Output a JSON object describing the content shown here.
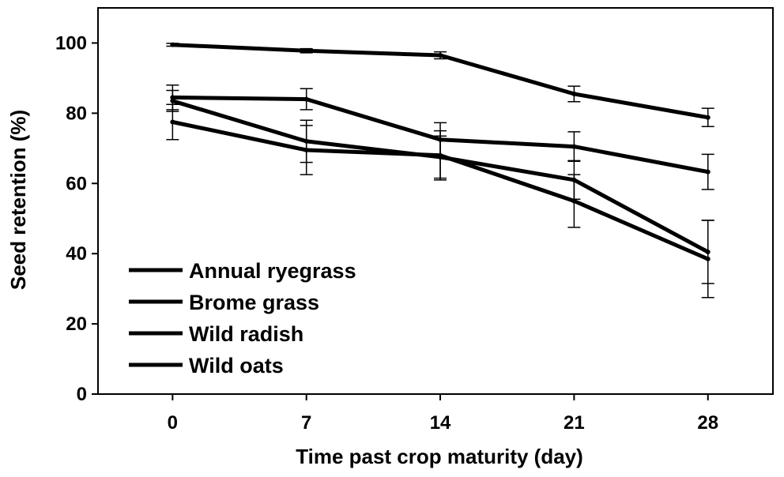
{
  "chart_data": {
    "type": "line",
    "xlabel": "Time past crop maturity (day)",
    "ylabel": "Seed retention (%)",
    "x": [
      0,
      7,
      14,
      21,
      28
    ],
    "xlim": [
      -3.9,
      31.4
    ],
    "ylim": [
      0,
      110
    ],
    "yticks": [
      0,
      20,
      40,
      60,
      80,
      100
    ],
    "grid": false,
    "legend_position": "bottom-left",
    "series": [
      {
        "name": "Annual ryegrass",
        "values": [
          99.5,
          97.8,
          96.5,
          85.5,
          78.8
        ],
        "errors": [
          0.4,
          0.6,
          1.0,
          2.2,
          2.6
        ]
      },
      {
        "name": "Brome grass",
        "values": [
          84.5,
          84.0,
          72.5,
          70.5,
          63.3
        ],
        "errors": [
          3.5,
          3.0,
          4.8,
          4.2,
          5.0
        ]
      },
      {
        "name": "Wild radish",
        "values": [
          83.5,
          72.0,
          67.5,
          61.0,
          40.5
        ],
        "errors": [
          3.0,
          6.0,
          6.0,
          5.5,
          9.0
        ]
      },
      {
        "name": "Wild oats",
        "values": [
          77.5,
          69.5,
          68.0,
          55.0,
          38.5
        ],
        "errors": [
          5.0,
          7.0,
          7.0,
          7.5,
          11.0
        ]
      }
    ]
  }
}
